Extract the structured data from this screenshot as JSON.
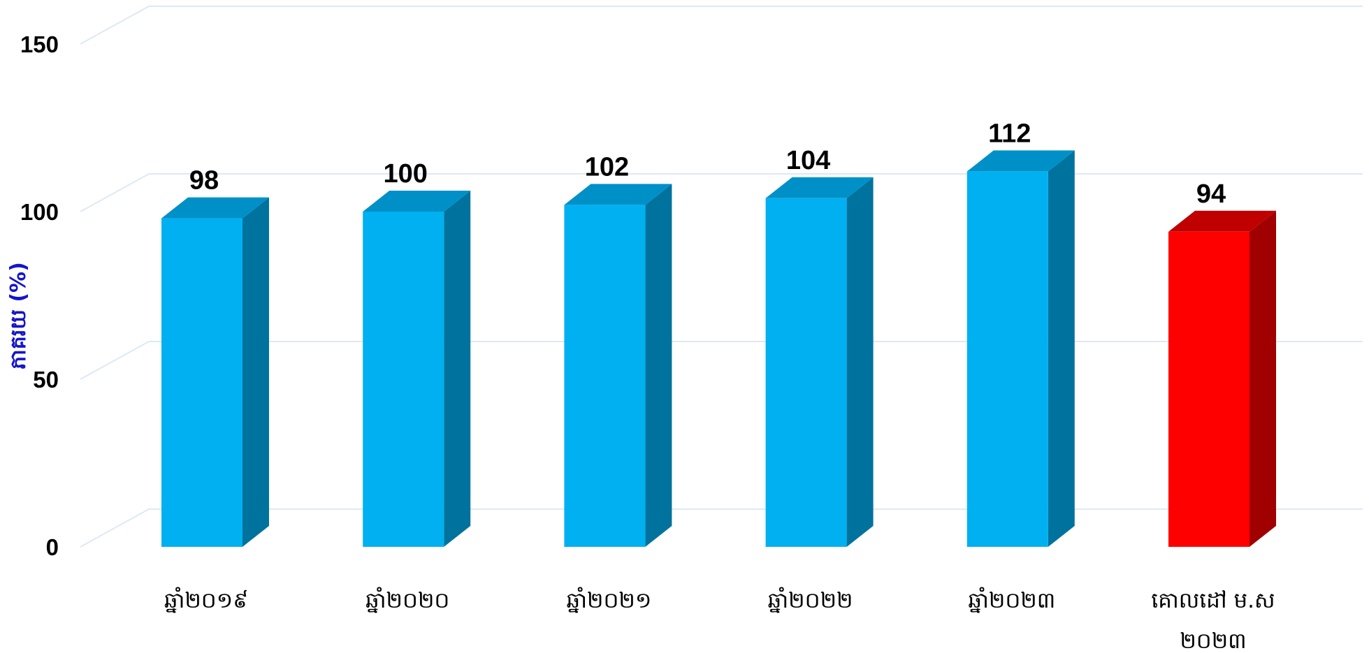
{
  "chart_data": {
    "type": "bar",
    "categories": [
      [
        "ឆ្នាំ២០១៩"
      ],
      [
        "ឆ្នាំ២០២០"
      ],
      [
        "ឆ្នាំ២០២១"
      ],
      [
        "ឆ្នាំ២០២២"
      ],
      [
        "ឆ្នាំ២០២៣"
      ],
      [
        "គោលដៅ ម.ស",
        "២០២៣"
      ]
    ],
    "values": [
      98,
      100,
      102,
      104,
      112,
      94
    ],
    "data_labels": [
      "98",
      "100",
      "102",
      "104",
      "112",
      "94"
    ],
    "ylabel": "ភាគរយ (%)",
    "xlabel": "",
    "ylim": [
      0,
      150
    ],
    "yticks": [
      0,
      50,
      100,
      150
    ],
    "style": "3d-columns",
    "grid": true,
    "legend": "none",
    "colors": {
      "bar_front": "#00b0f0",
      "bar_top": "#0090c8",
      "bar_side": "#00729e",
      "highlight_front": "#ff0000",
      "highlight_top": "#c00000",
      "highlight_side": "#a00000",
      "grid": "#dde9f4",
      "ylabel": "#1414cc"
    },
    "highlight_index": 5
  }
}
